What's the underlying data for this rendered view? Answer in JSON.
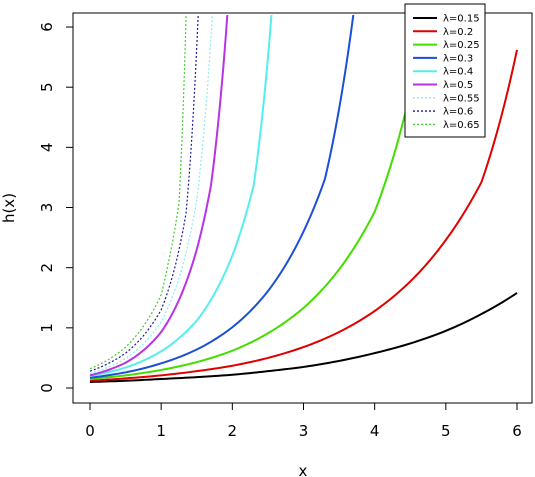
{
  "chart_data": {
    "type": "line",
    "title": "",
    "xlabel": "x",
    "ylabel": "h(x)",
    "xlim": [
      0,
      6
    ],
    "ylim": [
      0,
      6.2
    ],
    "x_ticks": [
      "0",
      "1",
      "2",
      "3",
      "4",
      "5",
      "6"
    ],
    "y_ticks": [
      "0",
      "1",
      "2",
      "3",
      "4",
      "5",
      "6"
    ],
    "grid": false,
    "legend_position": "top-right",
    "series": [
      {
        "name": "λ=0.15",
        "color": "#000000",
        "dash": "solid",
        "x": [
          0,
          0.5,
          1,
          1.5,
          2,
          2.5,
          3,
          3.5,
          4,
          4.5,
          5,
          5.5,
          6
        ],
        "y": [
          0.1,
          0.12,
          0.15,
          0.18,
          0.22,
          0.28,
          0.35,
          0.45,
          0.58,
          0.74,
          0.95,
          1.23,
          1.58
        ]
      },
      {
        "name": "λ=0.2",
        "color": "#df0000",
        "dash": "solid",
        "x": [
          0,
          0.5,
          1,
          1.5,
          2,
          2.5,
          3,
          3.5,
          4,
          4.5,
          5,
          5.5,
          6
        ],
        "y": [
          0.12,
          0.16,
          0.21,
          0.28,
          0.37,
          0.5,
          0.68,
          0.93,
          1.28,
          1.77,
          2.46,
          3.42,
          5.62
        ]
      },
      {
        "name": "λ=0.25",
        "color": "#44dd00",
        "dash": "solid",
        "x": [
          0,
          0.5,
          1,
          1.5,
          2,
          2.5,
          3,
          3.5,
          4,
          4.5,
          4.7
        ],
        "y": [
          0.15,
          0.21,
          0.3,
          0.43,
          0.62,
          0.91,
          1.33,
          1.97,
          2.93,
          4.91,
          6.2
        ]
      },
      {
        "name": "λ=0.3",
        "color": "#1a4fd6",
        "dash": "solid",
        "x": [
          0,
          0.5,
          1,
          1.5,
          2,
          2.5,
          3,
          3.3,
          3.7
        ],
        "y": [
          0.17,
          0.26,
          0.41,
          0.64,
          1.01,
          1.61,
          2.6,
          3.47,
          6.2
        ]
      },
      {
        "name": "λ=0.4",
        "color": "#55eeee",
        "dash": "solid",
        "x": [
          0,
          0.5,
          1,
          1.5,
          2,
          2.3,
          2.55
        ],
        "y": [
          0.2,
          0.34,
          0.61,
          1.12,
          2.2,
          3.37,
          6.2
        ]
      },
      {
        "name": "λ=0.5",
        "color": "#b833e6",
        "dash": "solid",
        "x": [
          0,
          0.5,
          1,
          1.5,
          1.7,
          1.93
        ],
        "y": [
          0.21,
          0.42,
          0.93,
          2.3,
          3.37,
          6.2
        ]
      },
      {
        "name": "λ=0.55",
        "color": "#88eeee",
        "dash": "dotted",
        "x": [
          0,
          0.5,
          1,
          1.3,
          1.5,
          1.72
        ],
        "y": [
          0.24,
          0.49,
          1.1,
          2.02,
          3.12,
          6.2
        ]
      },
      {
        "name": "λ=0.6",
        "color": "#1a1a99",
        "dash": "dotted",
        "x": [
          0,
          0.5,
          1,
          1.2,
          1.35,
          1.52
        ],
        "y": [
          0.28,
          0.58,
          1.3,
          2.04,
          2.91,
          6.2
        ]
      },
      {
        "name": "λ=0.65",
        "color": "#44cc33",
        "dash": "dotted",
        "x": [
          0,
          0.5,
          1,
          1.1,
          1.25,
          1.35
        ],
        "y": [
          0.32,
          0.68,
          1.55,
          2.08,
          3.07,
          6.2
        ]
      }
    ]
  }
}
